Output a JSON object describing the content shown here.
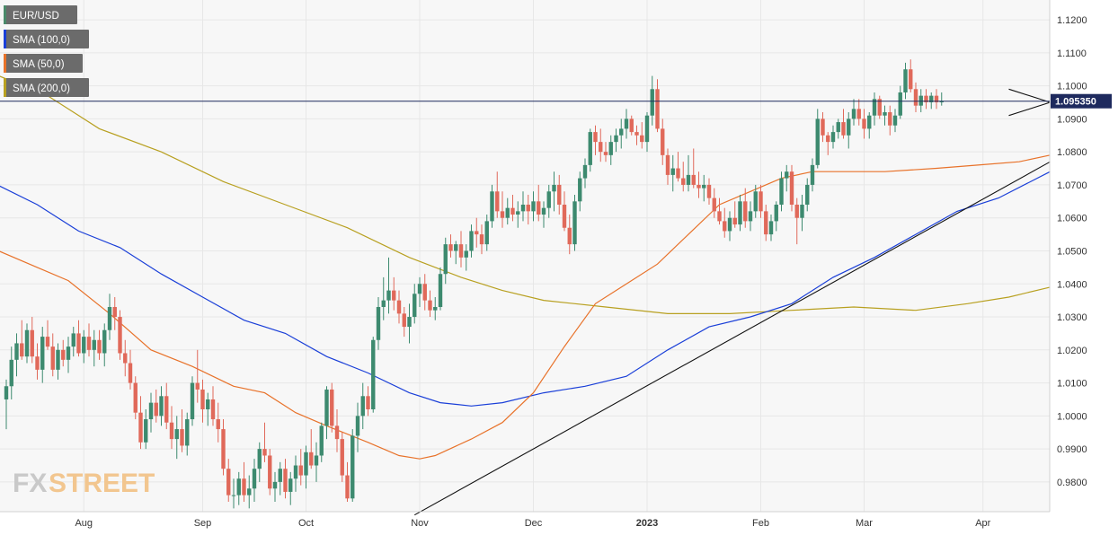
{
  "chart_data": {
    "type": "candlestick",
    "symbol": "EUR/USD",
    "timeframe": "daily",
    "ylim": [
      0.971,
      1.126
    ],
    "y_ticks": [
      "1.1200",
      "1.1100",
      "1.1000",
      "1.0900",
      "1.0800",
      "1.0700",
      "1.0600",
      "1.0500",
      "1.0400",
      "1.0300",
      "1.0200",
      "1.0100",
      "1.0000",
      "0.9900",
      "0.9800"
    ],
    "x_labels": [
      {
        "label": "Aug",
        "bar": 15,
        "bold": false
      },
      {
        "label": "Sep",
        "bar": 38,
        "bold": false
      },
      {
        "label": "Oct",
        "bar": 58,
        "bold": false
      },
      {
        "label": "Nov",
        "bar": 80,
        "bold": false
      },
      {
        "label": "Dec",
        "bar": 102,
        "bold": false
      },
      {
        "label": "2023",
        "bar": 124,
        "bold": true
      },
      {
        "label": "Feb",
        "bar": 146,
        "bold": false
      },
      {
        "label": "Mar",
        "bar": 166,
        "bold": false
      },
      {
        "label": "Apr",
        "bar": 189,
        "bold": false
      }
    ],
    "legend": [
      {
        "label": "EUR/USD",
        "color": "#4a8a6a"
      },
      {
        "label": "SMA (100,0)",
        "color": "#1a3fd8"
      },
      {
        "label": "SMA (50,0)",
        "color": "#e8722a"
      },
      {
        "label": "SMA (200,0)",
        "color": "#b8a020"
      }
    ],
    "current_price": {
      "label": "1.095350",
      "value": 1.09535
    },
    "candles_ohlc": [
      [
        1.005,
        1.011,
        0.996,
        1.009
      ],
      [
        1.009,
        1.021,
        1.005,
        1.017
      ],
      [
        1.017,
        1.025,
        1.012,
        1.022
      ],
      [
        1.022,
        1.029,
        1.017,
        1.018
      ],
      [
        1.018,
        1.028,
        1.016,
        1.026
      ],
      [
        1.026,
        1.03,
        1.016,
        1.018
      ],
      [
        1.018,
        1.022,
        1.011,
        1.014
      ],
      [
        1.014,
        1.027,
        1.01,
        1.024
      ],
      [
        1.024,
        1.029,
        1.02,
        1.021
      ],
      [
        1.021,
        1.025,
        1.012,
        1.014
      ],
      [
        1.014,
        1.022,
        1.011,
        1.02
      ],
      [
        1.02,
        1.023,
        1.015,
        1.017
      ],
      [
        1.017,
        1.024,
        1.013,
        1.021
      ],
      [
        1.021,
        1.027,
        1.018,
        1.025
      ],
      [
        1.025,
        1.029,
        1.018,
        1.019
      ],
      [
        1.019,
        1.026,
        1.016,
        1.024
      ],
      [
        1.024,
        1.028,
        1.018,
        1.02
      ],
      [
        1.02,
        1.026,
        1.015,
        1.023
      ],
      [
        1.023,
        1.026,
        1.017,
        1.019
      ],
      [
        1.019,
        1.028,
        1.015,
        1.026
      ],
      [
        1.026,
        1.037,
        1.023,
        1.033
      ],
      [
        1.033,
        1.036,
        1.026,
        1.03
      ],
      [
        1.03,
        1.032,
        1.017,
        1.019
      ],
      [
        1.019,
        1.023,
        1.012,
        1.016
      ],
      [
        1.016,
        1.02,
        1.008,
        1.01
      ],
      [
        1.01,
        1.012,
        0.999,
        1.001
      ],
      [
        1.001,
        1.006,
        0.99,
        0.992
      ],
      [
        0.992,
        1.002,
        0.99,
        0.999
      ],
      [
        0.999,
        1.007,
        0.995,
        1.004
      ],
      [
        1.004,
        1.008,
        0.998,
        1.0
      ],
      [
        1.0,
        1.009,
        0.997,
        1.006
      ],
      [
        1.006,
        1.01,
        0.996,
        0.998
      ],
      [
        0.998,
        1.003,
        0.99,
        0.993
      ],
      [
        0.993,
        1.0,
        0.987,
        0.996
      ],
      [
        0.996,
        1.002,
        0.989,
        0.991
      ],
      [
        0.991,
        1.001,
        0.988,
        0.999
      ],
      [
        0.999,
        1.012,
        0.997,
        1.01
      ],
      [
        1.01,
        1.02,
        1.004,
        1.008
      ],
      [
        1.008,
        1.011,
        0.998,
        1.002
      ],
      [
        1.002,
        1.007,
        0.997,
        1.005
      ],
      [
        1.005,
        1.009,
        0.997,
        0.999
      ],
      [
        0.999,
        1.004,
        0.992,
        0.996
      ],
      [
        0.996,
        0.999,
        0.982,
        0.984
      ],
      [
        0.984,
        0.987,
        0.974,
        0.976
      ],
      [
        0.976,
        0.981,
        0.972,
        0.976
      ],
      [
        0.976,
        0.983,
        0.973,
        0.981
      ],
      [
        0.981,
        0.986,
        0.974,
        0.976
      ],
      [
        0.976,
        0.982,
        0.972,
        0.978
      ],
      [
        0.978,
        0.987,
        0.974,
        0.984
      ],
      [
        0.984,
        0.992,
        0.98,
        0.99
      ],
      [
        0.99,
        0.998,
        0.986,
        0.988
      ],
      [
        0.988,
        0.99,
        0.976,
        0.978
      ],
      [
        0.978,
        0.983,
        0.974,
        0.98
      ],
      [
        0.98,
        0.986,
        0.976,
        0.984
      ],
      [
        0.984,
        0.987,
        0.975,
        0.977
      ],
      [
        0.977,
        0.983,
        0.973,
        0.981
      ],
      [
        0.981,
        0.988,
        0.977,
        0.985
      ],
      [
        0.985,
        0.99,
        0.979,
        0.982
      ],
      [
        0.982,
        0.991,
        0.978,
        0.989
      ],
      [
        0.989,
        0.996,
        0.984,
        0.985
      ],
      [
        0.985,
        0.992,
        0.98,
        0.988
      ],
      [
        0.988,
        0.998,
        0.986,
        0.997
      ],
      [
        0.997,
        1.009,
        0.993,
        1.008
      ],
      [
        1.008,
        1.01,
        0.995,
        0.997
      ],
      [
        0.997,
        1.002,
        0.989,
        0.993
      ],
      [
        0.993,
        0.995,
        0.98,
        0.982
      ],
      [
        0.982,
        0.986,
        0.974,
        0.975
      ],
      [
        0.975,
        0.996,
        0.974,
        0.994
      ],
      [
        0.994,
        1.004,
        0.989,
        1.0
      ],
      [
        1.0,
        1.01,
        0.996,
        1.006
      ],
      [
        1.006,
        1.009,
        1.0,
        1.002
      ],
      [
        1.002,
        1.024,
        1.001,
        1.023
      ],
      [
        1.023,
        1.036,
        1.02,
        1.033
      ],
      [
        1.033,
        1.042,
        1.029,
        1.035
      ],
      [
        1.035,
        1.048,
        1.031,
        1.038
      ],
      [
        1.038,
        1.042,
        1.032,
        1.035
      ],
      [
        1.035,
        1.038,
        1.028,
        1.031
      ],
      [
        1.031,
        1.033,
        1.024,
        1.027
      ],
      [
        1.027,
        1.034,
        1.022,
        1.03
      ],
      [
        1.03,
        1.04,
        1.028,
        1.037
      ],
      [
        1.037,
        1.042,
        1.033,
        1.04
      ],
      [
        1.04,
        1.043,
        1.032,
        1.035
      ],
      [
        1.035,
        1.038,
        1.03,
        1.032
      ],
      [
        1.032,
        1.036,
        1.029,
        1.033
      ],
      [
        1.033,
        1.045,
        1.032,
        1.043
      ],
      [
        1.043,
        1.054,
        1.04,
        1.052
      ],
      [
        1.052,
        1.055,
        1.048,
        1.05
      ],
      [
        1.05,
        1.053,
        1.046,
        1.052
      ],
      [
        1.052,
        1.056,
        1.045,
        1.048
      ],
      [
        1.048,
        1.052,
        1.044,
        1.05
      ],
      [
        1.05,
        1.058,
        1.048,
        1.056
      ],
      [
        1.056,
        1.06,
        1.051,
        1.055
      ],
      [
        1.055,
        1.058,
        1.049,
        1.052
      ],
      [
        1.052,
        1.061,
        1.05,
        1.059
      ],
      [
        1.059,
        1.07,
        1.057,
        1.068
      ],
      [
        1.068,
        1.074,
        1.06,
        1.062
      ],
      [
        1.062,
        1.068,
        1.057,
        1.06
      ],
      [
        1.06,
        1.066,
        1.058,
        1.063
      ],
      [
        1.063,
        1.067,
        1.059,
        1.061
      ],
      [
        1.061,
        1.065,
        1.057,
        1.062
      ],
      [
        1.062,
        1.068,
        1.059,
        1.064
      ],
      [
        1.064,
        1.067,
        1.058,
        1.062
      ],
      [
        1.062,
        1.068,
        1.059,
        1.065
      ],
      [
        1.065,
        1.07,
        1.059,
        1.061
      ],
      [
        1.061,
        1.065,
        1.057,
        1.063
      ],
      [
        1.063,
        1.07,
        1.06,
        1.068
      ],
      [
        1.068,
        1.074,
        1.062,
        1.07
      ],
      [
        1.07,
        1.073,
        1.061,
        1.064
      ],
      [
        1.064,
        1.068,
        1.056,
        1.057
      ],
      [
        1.057,
        1.061,
        1.049,
        1.052
      ],
      [
        1.052,
        1.067,
        1.05,
        1.065
      ],
      [
        1.065,
        1.074,
        1.062,
        1.072
      ],
      [
        1.072,
        1.078,
        1.069,
        1.076
      ],
      [
        1.076,
        1.087,
        1.074,
        1.086
      ],
      [
        1.086,
        1.088,
        1.079,
        1.083
      ],
      [
        1.083,
        1.087,
        1.077,
        1.08
      ],
      [
        1.08,
        1.083,
        1.077,
        1.079
      ],
      [
        1.079,
        1.085,
        1.076,
        1.083
      ],
      [
        1.083,
        1.087,
        1.08,
        1.085
      ],
      [
        1.085,
        1.09,
        1.081,
        1.087
      ],
      [
        1.087,
        1.093,
        1.084,
        1.09
      ],
      [
        1.09,
        1.091,
        1.085,
        1.086
      ],
      [
        1.086,
        1.088,
        1.082,
        1.085
      ],
      [
        1.085,
        1.089,
        1.081,
        1.083
      ],
      [
        1.083,
        1.092,
        1.08,
        1.091
      ],
      [
        1.091,
        1.103,
        1.088,
        1.099
      ],
      [
        1.099,
        1.102,
        1.086,
        1.087
      ],
      [
        1.087,
        1.09,
        1.076,
        1.079
      ],
      [
        1.079,
        1.081,
        1.07,
        1.073
      ],
      [
        1.073,
        1.079,
        1.068,
        1.075
      ],
      [
        1.075,
        1.08,
        1.071,
        1.072
      ],
      [
        1.072,
        1.077,
        1.068,
        1.07
      ],
      [
        1.07,
        1.079,
        1.068,
        1.073
      ],
      [
        1.073,
        1.081,
        1.069,
        1.07
      ],
      [
        1.07,
        1.074,
        1.066,
        1.069
      ],
      [
        1.069,
        1.073,
        1.065,
        1.07
      ],
      [
        1.07,
        1.072,
        1.064,
        1.066
      ],
      [
        1.066,
        1.069,
        1.06,
        1.062
      ],
      [
        1.062,
        1.066,
        1.058,
        1.059
      ],
      [
        1.059,
        1.063,
        1.054,
        1.056
      ],
      [
        1.056,
        1.062,
        1.053,
        1.06
      ],
      [
        1.06,
        1.065,
        1.057,
        1.058
      ],
      [
        1.058,
        1.067,
        1.056,
        1.065
      ],
      [
        1.065,
        1.069,
        1.057,
        1.059
      ],
      [
        1.059,
        1.065,
        1.056,
        1.062
      ],
      [
        1.062,
        1.07,
        1.06,
        1.068
      ],
      [
        1.068,
        1.07,
        1.06,
        1.062
      ],
      [
        1.062,
        1.064,
        1.053,
        1.055
      ],
      [
        1.055,
        1.061,
        1.053,
        1.059
      ],
      [
        1.059,
        1.065,
        1.056,
        1.064
      ],
      [
        1.064,
        1.074,
        1.062,
        1.072
      ],
      [
        1.072,
        1.076,
        1.068,
        1.074
      ],
      [
        1.074,
        1.076,
        1.062,
        1.064
      ],
      [
        1.064,
        1.066,
        1.052,
        1.06
      ],
      [
        1.06,
        1.067,
        1.056,
        1.064
      ],
      [
        1.064,
        1.072,
        1.062,
        1.07
      ],
      [
        1.07,
        1.078,
        1.068,
        1.076
      ],
      [
        1.076,
        1.093,
        1.075,
        1.09
      ],
      [
        1.09,
        1.092,
        1.083,
        1.085
      ],
      [
        1.085,
        1.086,
        1.079,
        1.083
      ],
      [
        1.083,
        1.088,
        1.081,
        1.086
      ],
      [
        1.086,
        1.09,
        1.084,
        1.089
      ],
      [
        1.089,
        1.093,
        1.084,
        1.085
      ],
      [
        1.085,
        1.092,
        1.081,
        1.09
      ],
      [
        1.09,
        1.096,
        1.088,
        1.093
      ],
      [
        1.093,
        1.096,
        1.088,
        1.09
      ],
      [
        1.09,
        1.093,
        1.084,
        1.087
      ],
      [
        1.087,
        1.092,
        1.084,
        1.091
      ],
      [
        1.091,
        1.098,
        1.088,
        1.096
      ],
      [
        1.096,
        1.097,
        1.09,
        1.091
      ],
      [
        1.091,
        1.094,
        1.088,
        1.092
      ],
      [
        1.092,
        1.094,
        1.085,
        1.088
      ],
      [
        1.088,
        1.093,
        1.086,
        1.091
      ],
      [
        1.091,
        1.1,
        1.09,
        1.098
      ],
      [
        1.098,
        1.107,
        1.096,
        1.105
      ],
      [
        1.105,
        1.108,
        1.098,
        1.099
      ],
      [
        1.099,
        1.101,
        1.092,
        1.094
      ],
      [
        1.094,
        1.099,
        1.092,
        1.097
      ],
      [
        1.097,
        1.099,
        1.093,
        1.095
      ],
      [
        1.095,
        1.098,
        1.093,
        1.097
      ],
      [
        1.097,
        1.099,
        1.093,
        1.095
      ],
      [
        1.095,
        1.098,
        1.094,
        1.09535
      ]
    ],
    "sma_50": [
      [
        -3,
        1.051
      ],
      [
        6,
        1.045
      ],
      [
        12,
        1.041
      ],
      [
        20,
        1.031
      ],
      [
        28,
        1.02
      ],
      [
        36,
        1.015
      ],
      [
        44,
        1.009
      ],
      [
        50,
        1.007
      ],
      [
        56,
        1.001
      ],
      [
        62,
        0.997
      ],
      [
        70,
        0.992
      ],
      [
        76,
        0.988
      ],
      [
        80,
        0.987
      ],
      [
        83,
        0.988
      ],
      [
        90,
        0.993
      ],
      [
        96,
        0.998
      ],
      [
        102,
        1.007
      ],
      [
        108,
        1.021
      ],
      [
        114,
        1.034
      ],
      [
        120,
        1.04
      ],
      [
        126,
        1.046
      ],
      [
        132,
        1.055
      ],
      [
        138,
        1.064
      ],
      [
        144,
        1.068
      ],
      [
        150,
        1.072
      ],
      [
        156,
        1.074
      ],
      [
        164,
        1.074
      ],
      [
        170,
        1.074
      ],
      [
        180,
        1.075
      ],
      [
        188,
        1.076
      ],
      [
        196,
        1.077
      ],
      [
        202,
        1.079
      ]
    ],
    "sma_100": [
      [
        -3,
        1.071
      ],
      [
        6,
        1.064
      ],
      [
        14,
        1.056
      ],
      [
        22,
        1.051
      ],
      [
        30,
        1.043
      ],
      [
        38,
        1.036
      ],
      [
        46,
        1.029
      ],
      [
        54,
        1.025
      ],
      [
        62,
        1.018
      ],
      [
        70,
        1.013
      ],
      [
        78,
        1.007
      ],
      [
        84,
        1.004
      ],
      [
        90,
        1.003
      ],
      [
        96,
        1.004
      ],
      [
        104,
        1.007
      ],
      [
        112,
        1.009
      ],
      [
        120,
        1.012
      ],
      [
        128,
        1.02
      ],
      [
        136,
        1.027
      ],
      [
        144,
        1.03
      ],
      [
        152,
        1.034
      ],
      [
        160,
        1.042
      ],
      [
        168,
        1.048
      ],
      [
        176,
        1.055
      ],
      [
        184,
        1.062
      ],
      [
        192,
        1.066
      ],
      [
        202,
        1.074
      ]
    ],
    "sma_200": [
      [
        -3,
        1.104
      ],
      [
        8,
        1.097
      ],
      [
        18,
        1.087
      ],
      [
        30,
        1.08
      ],
      [
        42,
        1.071
      ],
      [
        54,
        1.064
      ],
      [
        66,
        1.057
      ],
      [
        78,
        1.048
      ],
      [
        88,
        1.042
      ],
      [
        96,
        1.038
      ],
      [
        104,
        1.035
      ],
      [
        116,
        1.033
      ],
      [
        128,
        1.031
      ],
      [
        140,
        1.031
      ],
      [
        152,
        1.032
      ],
      [
        164,
        1.033
      ],
      [
        176,
        1.032
      ],
      [
        186,
        1.034
      ],
      [
        194,
        1.036
      ],
      [
        202,
        1.039
      ]
    ],
    "trendline": {
      "from": [
        79,
        0.97
      ],
      "to": [
        202,
        1.077
      ]
    },
    "triangle_upper": {
      "from": [
        194,
        1.099
      ],
      "to": [
        202,
        1.095
      ]
    },
    "triangle_lower": {
      "from": [
        194,
        1.091
      ],
      "to": [
        202,
        1.095
      ]
    }
  },
  "watermark": {
    "part1": "FX",
    "part2": "STREET"
  },
  "colors": {
    "bullish": "#3d8a6f",
    "bearish": "#e0695a",
    "price_line": "#1e2a5e",
    "grid": "#e7e7e7",
    "plot_bg": "#f7f7f7",
    "legend_bg": "#6b6b6b"
  }
}
